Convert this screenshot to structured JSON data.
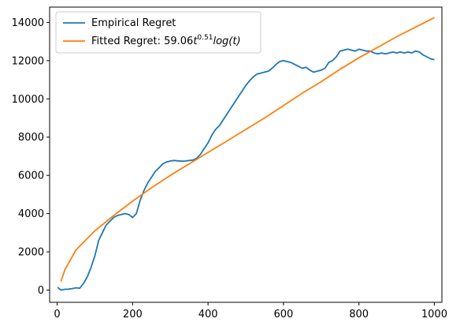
{
  "chart_data": {
    "type": "line",
    "title": "",
    "xlabel": "",
    "ylabel": "",
    "xlim": [
      -20,
      1020
    ],
    "ylim": [
      -640,
      14800
    ],
    "xticks": [
      0,
      200,
      400,
      600,
      800,
      1000
    ],
    "yticks": [
      0,
      2000,
      4000,
      6000,
      8000,
      10000,
      12000,
      14000
    ],
    "grid": false,
    "legend_position": "top-left",
    "colors": {
      "empirical": "#1f77b4",
      "fitted": "#ff7f0e"
    },
    "legend": {
      "empirical_label": "Empirical Regret",
      "fitted_prefix": "Fitted Regret: 59.06",
      "fitted_t": "t",
      "fitted_exp": "0.51",
      "fitted_log": "log",
      "fitted_arg": "(t)"
    },
    "series": [
      {
        "name": "Empirical Regret",
        "x": [
          1,
          10,
          20,
          30,
          40,
          50,
          60,
          70,
          80,
          90,
          100,
          110,
          120,
          130,
          140,
          150,
          160,
          170,
          180,
          190,
          200,
          210,
          220,
          230,
          240,
          250,
          260,
          270,
          280,
          290,
          300,
          310,
          320,
          330,
          340,
          350,
          360,
          370,
          380,
          390,
          400,
          410,
          420,
          430,
          440,
          450,
          460,
          470,
          480,
          490,
          500,
          510,
          520,
          530,
          540,
          550,
          560,
          570,
          580,
          590,
          600,
          610,
          620,
          630,
          640,
          650,
          660,
          670,
          680,
          690,
          700,
          710,
          720,
          730,
          740,
          750,
          760,
          770,
          780,
          790,
          800,
          810,
          820,
          830,
          840,
          850,
          860,
          870,
          880,
          890,
          900,
          910,
          920,
          930,
          940,
          950,
          960,
          970,
          980,
          990,
          1000
        ],
        "y": [
          150,
          0,
          40,
          50,
          80,
          120,
          100,
          350,
          700,
          1200,
          1800,
          2600,
          3000,
          3400,
          3600,
          3800,
          3900,
          3950,
          4000,
          3950,
          3800,
          4000,
          4700,
          5200,
          5600,
          5900,
          6200,
          6400,
          6600,
          6700,
          6750,
          6780,
          6760,
          6740,
          6750,
          6780,
          6800,
          6900,
          7100,
          7400,
          7700,
          8100,
          8400,
          8600,
          8900,
          9200,
          9500,
          9800,
          10100,
          10400,
          10700,
          10950,
          11150,
          11300,
          11350,
          11400,
          11450,
          11600,
          11800,
          11950,
          12000,
          11950,
          11900,
          11800,
          11700,
          11600,
          11650,
          11500,
          11400,
          11450,
          11500,
          11600,
          11900,
          12000,
          12200,
          12500,
          12550,
          12600,
          12550,
          12500,
          12600,
          12550,
          12500,
          12500,
          12400,
          12350,
          12400,
          12350,
          12400,
          12450,
          12400,
          12450,
          12400,
          12450,
          12400,
          12500,
          12450,
          12300,
          12200,
          12100,
          12050
        ]
      },
      {
        "name": "Fitted Regret: 59.06t^0.51 log(t)",
        "x": [
          10,
          20,
          50,
          100,
          150,
          200,
          250,
          300,
          350,
          400,
          450,
          500,
          550,
          600,
          650,
          700,
          750,
          800,
          850,
          900,
          950,
          1000
        ],
        "y": [
          450,
          1050,
          2100,
          3100,
          3900,
          4650,
          5350,
          6000,
          6600,
          7200,
          7800,
          8400,
          9000,
          9650,
          10300,
          10900,
          11550,
          12150,
          12700,
          13250,
          13750,
          14250
        ]
      }
    ]
  }
}
